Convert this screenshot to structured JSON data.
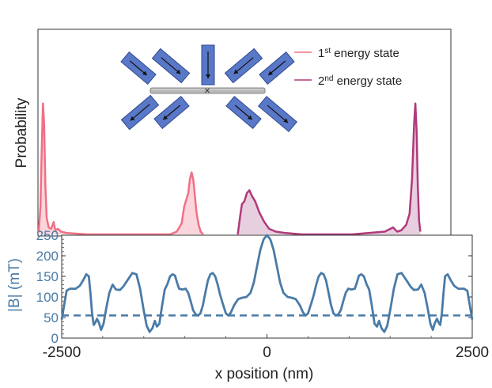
{
  "chart_data": [
    {
      "type": "area",
      "ylabel": "Probability",
      "legend_position": "top-right",
      "xlim": [
        -2500,
        2500
      ],
      "series": [
        {
          "name_main": "1",
          "name_sup": "st",
          "name_rest": " energy state",
          "color": "#f07085",
          "fill": "#fbd5dc",
          "points": [
            [
              -2490,
              0.02
            ],
            [
              -2470,
              0.2
            ],
            [
              -2455,
              0.6
            ],
            [
              -2440,
              0.95
            ],
            [
              -2425,
              0.8
            ],
            [
              -2410,
              0.35
            ],
            [
              -2395,
              0.12
            ],
            [
              -2370,
              0.05
            ],
            [
              -2340,
              0.04
            ],
            [
              -2310,
              0.09
            ],
            [
              -2290,
              0.03
            ],
            [
              -2260,
              0.04
            ],
            [
              -2220,
              0.02
            ],
            [
              -2150,
              0.01
            ],
            [
              -1900,
              0.0
            ],
            [
              -1200,
              0.0
            ],
            [
              -900,
              0.0
            ],
            [
              -820,
              0.02
            ],
            [
              -760,
              0.08
            ],
            [
              -730,
              0.2
            ],
            [
              -700,
              0.26
            ],
            [
              -680,
              0.3
            ],
            [
              -660,
              0.4
            ],
            [
              -640,
              0.45
            ],
            [
              -620,
              0.4
            ],
            [
              -600,
              0.28
            ],
            [
              -580,
              0.16
            ],
            [
              -555,
              0.07
            ],
            [
              -530,
              0.02
            ],
            [
              -500,
              0.0
            ]
          ]
        },
        {
          "name_main": "2",
          "name_sup": "nd",
          "name_rest": " energy state",
          "color": "#b03a7a",
          "fill": "#e8cfe0",
          "points": [
            [
              -80,
              0.0
            ],
            [
              -50,
              0.14
            ],
            [
              -30,
              0.22
            ],
            [
              0,
              0.24
            ],
            [
              30,
              0.3
            ],
            [
              60,
              0.32
            ],
            [
              90,
              0.28
            ],
            [
              130,
              0.24
            ],
            [
              180,
              0.16
            ],
            [
              240,
              0.09
            ],
            [
              300,
              0.04
            ],
            [
              380,
              0.02
            ],
            [
              500,
              0.01
            ],
            [
              700,
              0.0
            ],
            [
              1300,
              0.0
            ],
            [
              1500,
              0.01
            ],
            [
              1700,
              0.02
            ],
            [
              1800,
              0.05
            ],
            [
              1850,
              0.02
            ],
            [
              1900,
              0.03
            ],
            [
              1960,
              0.07
            ],
            [
              2000,
              0.15
            ],
            [
              2030,
              0.4
            ],
            [
              2055,
              0.8
            ],
            [
              2070,
              0.95
            ],
            [
              2085,
              0.75
            ],
            [
              2100,
              0.35
            ],
            [
              2115,
              0.1
            ],
            [
              2130,
              0.02
            ]
          ]
        }
      ]
    },
    {
      "type": "line",
      "xlabel": "x position (nm)",
      "ylabel": "|B| (mT)",
      "xlim": [
        -2500,
        2500
      ],
      "ylim": [
        0,
        250
      ],
      "xticks": [
        "-2500",
        "0",
        "2500"
      ],
      "xtick_values": [
        -2500,
        0,
        2500
      ],
      "yticks": [
        "0",
        "50",
        "100",
        "150",
        "200",
        "250"
      ],
      "ytick_values": [
        0,
        50,
        100,
        150,
        200,
        250
      ],
      "threshold": 55,
      "color": "#4a7ba7",
      "points": [
        [
          -2500,
          45
        ],
        [
          -2470,
          80
        ],
        [
          -2440,
          115
        ],
        [
          -2400,
          120
        ],
        [
          -2330,
          120
        ],
        [
          -2280,
          127
        ],
        [
          -2240,
          140
        ],
        [
          -2200,
          155
        ],
        [
          -2170,
          150
        ],
        [
          -2150,
          110
        ],
        [
          -2130,
          60
        ],
        [
          -2110,
          32
        ],
        [
          -2090,
          38
        ],
        [
          -2070,
          47
        ],
        [
          -2045,
          37
        ],
        [
          -2020,
          20
        ],
        [
          -1990,
          35
        ],
        [
          -1960,
          70
        ],
        [
          -1920,
          110
        ],
        [
          -1880,
          130
        ],
        [
          -1840,
          118
        ],
        [
          -1790,
          117
        ],
        [
          -1750,
          125
        ],
        [
          -1700,
          140
        ],
        [
          -1640,
          158
        ],
        [
          -1590,
          155
        ],
        [
          -1545,
          120
        ],
        [
          -1505,
          72
        ],
        [
          -1465,
          30
        ],
        [
          -1430,
          15
        ],
        [
          -1395,
          24
        ],
        [
          -1365,
          42
        ],
        [
          -1340,
          28
        ],
        [
          -1310,
          35
        ],
        [
          -1280,
          75
        ],
        [
          -1245,
          118
        ],
        [
          -1215,
          130
        ],
        [
          -1180,
          150
        ],
        [
          -1150,
          155
        ],
        [
          -1120,
          152
        ],
        [
          -1095,
          135
        ],
        [
          -1070,
          120
        ],
        [
          -1030,
          118
        ],
        [
          -990,
          120
        ],
        [
          -960,
          110
        ],
        [
          -930,
          90
        ],
        [
          -900,
          68
        ],
        [
          -870,
          58
        ],
        [
          -840,
          55
        ],
        [
          -810,
          60
        ],
        [
          -780,
          80
        ],
        [
          -750,
          110
        ],
        [
          -720,
          140
        ],
        [
          -690,
          155
        ],
        [
          -660,
          158
        ],
        [
          -630,
          150
        ],
        [
          -600,
          130
        ],
        [
          -570,
          105
        ],
        [
          -540,
          85
        ],
        [
          -500,
          60
        ],
        [
          -470,
          55
        ],
        [
          -440,
          62
        ],
        [
          -400,
          80
        ],
        [
          -350,
          95
        ],
        [
          -300,
          98
        ],
        [
          -250,
          100
        ],
        [
          -200,
          110
        ],
        [
          -160,
          135
        ],
        [
          -120,
          175
        ],
        [
          -80,
          215
        ],
        [
          -40,
          240
        ],
        [
          0,
          250
        ],
        [
          40,
          240
        ],
        [
          80,
          215
        ],
        [
          120,
          175
        ],
        [
          160,
          135
        ],
        [
          200,
          110
        ],
        [
          250,
          100
        ],
        [
          300,
          98
        ],
        [
          350,
          95
        ],
        [
          400,
          80
        ],
        [
          440,
          62
        ],
        [
          470,
          55
        ],
        [
          500,
          60
        ],
        [
          540,
          85
        ],
        [
          570,
          105
        ],
        [
          600,
          130
        ],
        [
          630,
          150
        ],
        [
          660,
          158
        ],
        [
          690,
          155
        ],
        [
          720,
          140
        ],
        [
          750,
          110
        ],
        [
          780,
          80
        ],
        [
          810,
          60
        ],
        [
          840,
          55
        ],
        [
          870,
          58
        ],
        [
          900,
          68
        ],
        [
          930,
          90
        ],
        [
          960,
          110
        ],
        [
          990,
          120
        ],
        [
          1030,
          118
        ],
        [
          1070,
          120
        ],
        [
          1095,
          135
        ],
        [
          1120,
          152
        ],
        [
          1150,
          155
        ],
        [
          1180,
          150
        ],
        [
          1215,
          130
        ],
        [
          1245,
          118
        ],
        [
          1280,
          75
        ],
        [
          1310,
          35
        ],
        [
          1340,
          28
        ],
        [
          1365,
          42
        ],
        [
          1395,
          24
        ],
        [
          1430,
          15
        ],
        [
          1465,
          30
        ],
        [
          1505,
          72
        ],
        [
          1545,
          120
        ],
        [
          1590,
          155
        ],
        [
          1640,
          158
        ],
        [
          1700,
          140
        ],
        [
          1750,
          125
        ],
        [
          1790,
          117
        ],
        [
          1840,
          118
        ],
        [
          1880,
          130
        ],
        [
          1920,
          110
        ],
        [
          1960,
          70
        ],
        [
          1990,
          35
        ],
        [
          2020,
          20
        ],
        [
          2045,
          37
        ],
        [
          2070,
          47
        ],
        [
          2090,
          38
        ],
        [
          2110,
          32
        ],
        [
          2130,
          60
        ],
        [
          2150,
          110
        ],
        [
          2170,
          150
        ],
        [
          2200,
          155
        ],
        [
          2240,
          140
        ],
        [
          2280,
          127
        ],
        [
          2330,
          120
        ],
        [
          2400,
          120
        ],
        [
          2440,
          115
        ],
        [
          2470,
          80
        ],
        [
          2500,
          45
        ]
      ]
    }
  ]
}
